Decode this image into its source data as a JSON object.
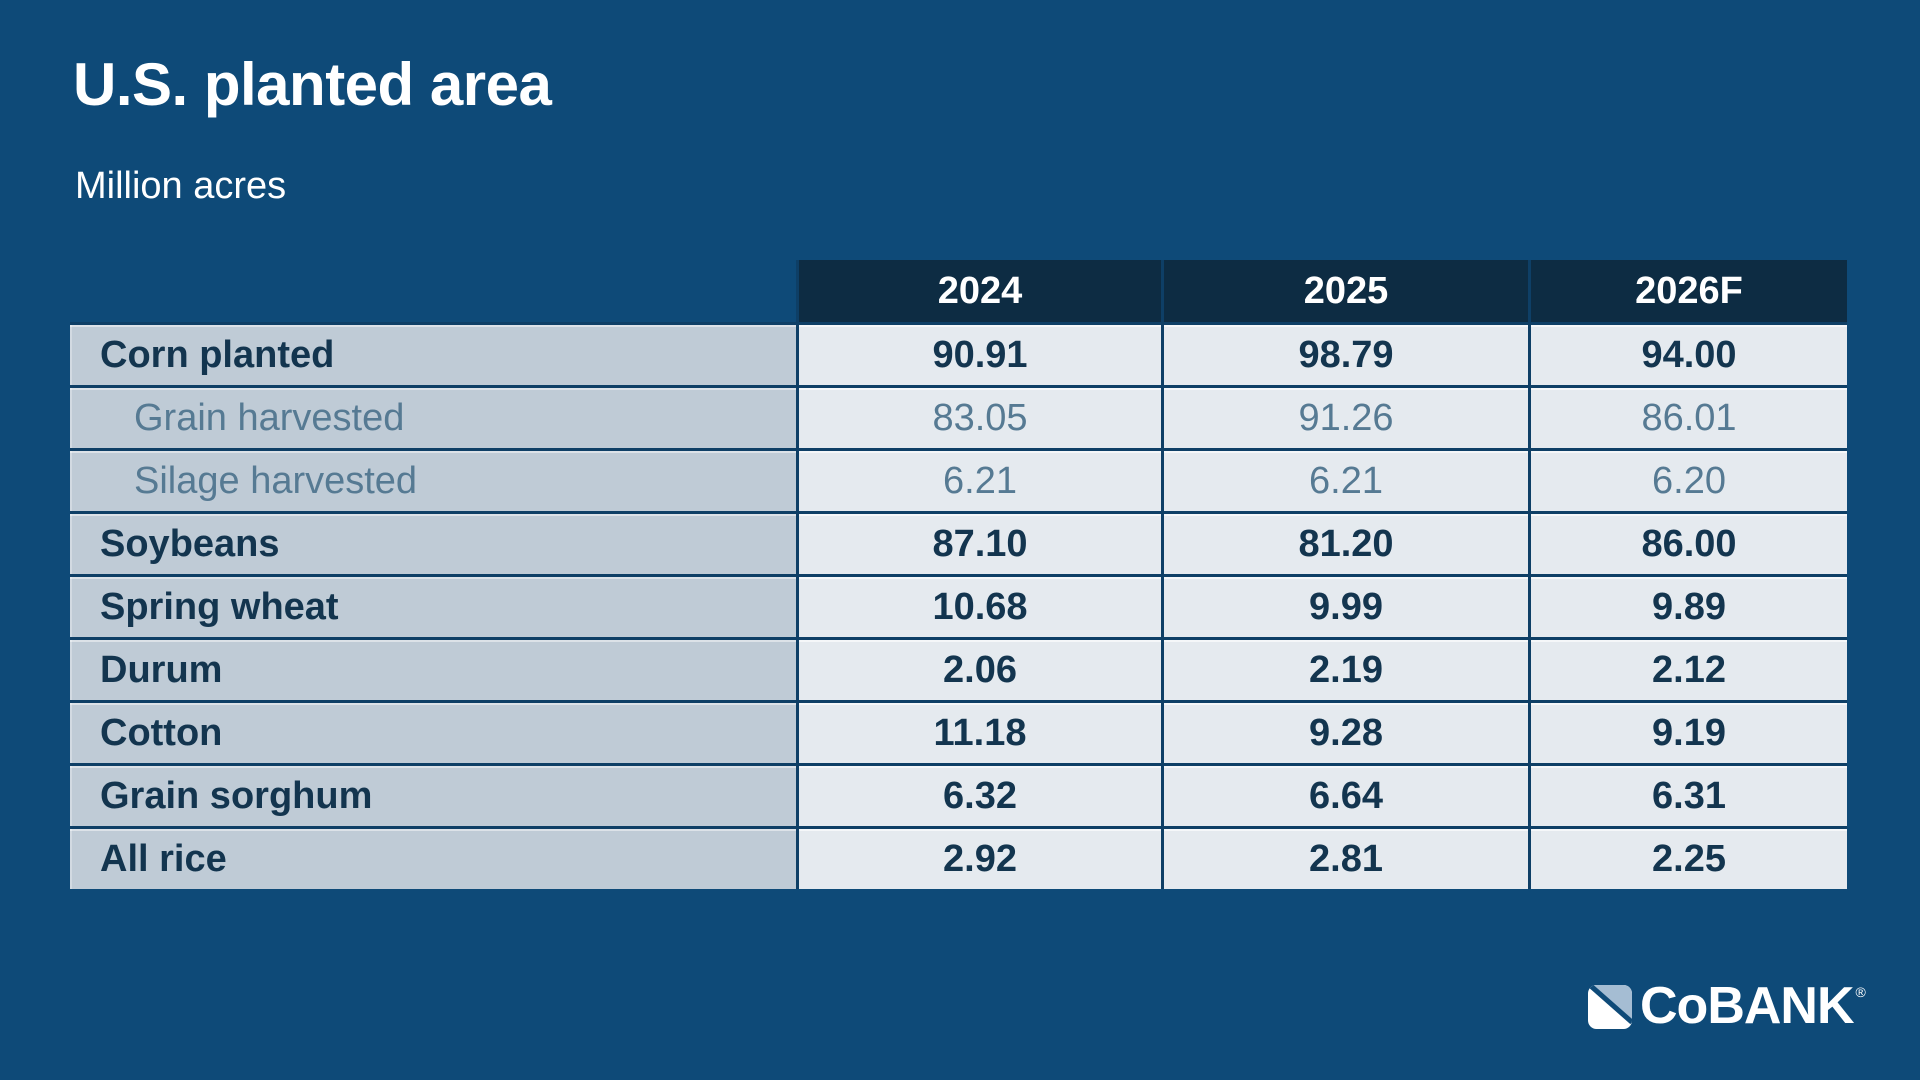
{
  "page": {
    "title": "U.S. planted area",
    "subtitle": "Million acres"
  },
  "chart_data": {
    "type": "table",
    "title": "U.S. planted area",
    "units": "Million acres",
    "columns": [
      "2024",
      "2025",
      "2026F"
    ],
    "rows": [
      {
        "label": "Corn planted",
        "emphasis": "bold",
        "values": [
          90.91,
          98.79,
          94.0
        ]
      },
      {
        "label": "Grain harvested",
        "emphasis": "sub",
        "values": [
          83.05,
          91.26,
          86.01
        ]
      },
      {
        "label": "Silage harvested",
        "emphasis": "sub",
        "values": [
          6.21,
          6.21,
          6.2
        ]
      },
      {
        "label": "Soybeans",
        "emphasis": "bold",
        "values": [
          87.1,
          81.2,
          86.0
        ]
      },
      {
        "label": "Spring wheat",
        "emphasis": "bold",
        "values": [
          10.68,
          9.99,
          9.89
        ]
      },
      {
        "label": "Durum",
        "emphasis": "bold",
        "values": [
          2.06,
          2.19,
          2.12
        ]
      },
      {
        "label": "Cotton",
        "emphasis": "bold",
        "values": [
          11.18,
          9.28,
          9.19
        ]
      },
      {
        "label": "Grain sorghum",
        "emphasis": "bold",
        "values": [
          6.32,
          6.64,
          6.31
        ]
      },
      {
        "label": "All rice",
        "emphasis": "bold",
        "values": [
          2.92,
          2.81,
          2.25
        ]
      }
    ],
    "value_format_decimals": 2
  },
  "logo": {
    "wordmark": "CoBANK",
    "registered": "®"
  },
  "colors": {
    "background": "#0E4A78",
    "header_bg": "#0D2C43",
    "label_cell_bg": "#BFCBD6",
    "value_cell_bg": "#E5EAEF",
    "grid_line": "#0E3F66",
    "bold_text": "#13354F",
    "muted_text": "#567A93",
    "title_text": "#FFFFFF",
    "logo_triangle": "#A5BDD3"
  }
}
